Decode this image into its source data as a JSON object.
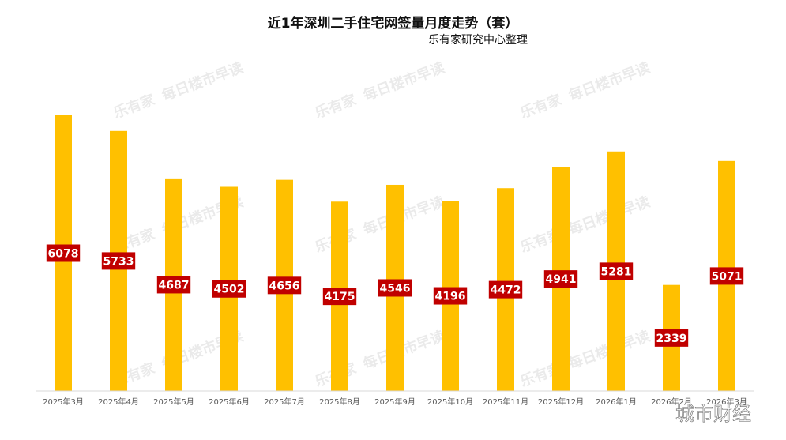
{
  "chart_data": {
    "type": "bar",
    "title": "近1年深圳二手住宅网签量月度走势（套）",
    "subtitle": "乐有家研究中心整理",
    "categories": [
      "2025年3月",
      "2025年4月",
      "2025年5月",
      "2025年6月",
      "2025年7月",
      "2025年8月",
      "2025年9月",
      "2025年10月",
      "2025年11月",
      "2025年12月",
      "2026年1月",
      "2026年2月",
      "2026年3月"
    ],
    "series": [
      {
        "values": [
          6078,
          5733,
          4687,
          4502,
          4656,
          4175,
          4546,
          4196,
          4472,
          4941,
          5281,
          2339,
          5071
        ]
      }
    ],
    "data_labels": true,
    "ylim": [
      0,
      6078
    ],
    "grid": false,
    "legend": "none",
    "colors": {
      "bar": "#FFC000",
      "label_bg": "#C00000",
      "label_text": "#FFFFFF"
    }
  },
  "watermark": {
    "logo": "乐有家",
    "text": "每日楼市早读"
  },
  "corner_watermark": "城市财经"
}
